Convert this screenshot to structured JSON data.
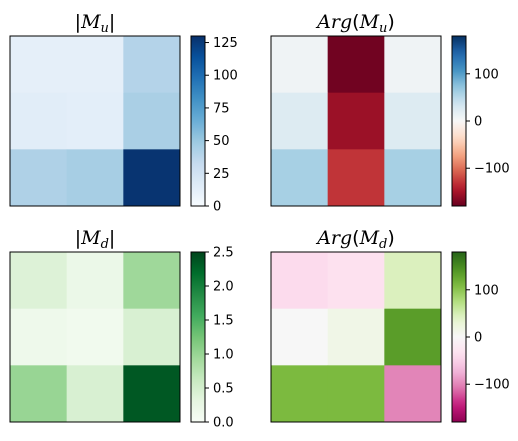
{
  "chart_data": [
    {
      "type": "heatmap",
      "title": "|M_u|",
      "cmap": "Blues",
      "vmin": 0,
      "vmax": 130,
      "matrix": [
        [
          12,
          12,
          40
        ],
        [
          14,
          13,
          44
        ],
        [
          42,
          45,
          128
        ]
      ],
      "colorbar_ticks": [
        "0",
        "25",
        "50",
        "75",
        "100",
        "125"
      ],
      "colorbar_tick_values": [
        0,
        25,
        50,
        75,
        100,
        125
      ]
    },
    {
      "type": "heatmap",
      "title": "Arg(M_u)",
      "cmap": "RdBu",
      "vmin": -180,
      "vmax": 180,
      "matrix": [
        [
          8,
          -175,
          8
        ],
        [
          25,
          -155,
          25
        ],
        [
          60,
          -130,
          60
        ]
      ],
      "colorbar_ticks": [
        "100",
        "0",
        "−100"
      ],
      "colorbar_tick_values": [
        100,
        0,
        -100
      ]
    },
    {
      "type": "heatmap",
      "title": "|M_d|",
      "cmap": "Greens",
      "vmin": 0,
      "vmax": 2.5,
      "matrix": [
        [
          0.4,
          0.2,
          0.95
        ],
        [
          0.15,
          0.1,
          0.45
        ],
        [
          1.0,
          0.45,
          2.35
        ]
      ],
      "colorbar_ticks": [
        "0.0",
        "0.5",
        "1.0",
        "1.5",
        "2.0",
        "2.5"
      ],
      "colorbar_tick_values": [
        0.0,
        0.5,
        1.0,
        1.5,
        2.0,
        2.5
      ]
    },
    {
      "type": "heatmap",
      "title": "Arg(M_d)",
      "cmap": "PiYG",
      "vmin": -180,
      "vmax": 180,
      "matrix": [
        [
          -40,
          -35,
          45
        ],
        [
          0,
          15,
          135
        ],
        [
          110,
          110,
          -100
        ]
      ],
      "colorbar_ticks": [
        "100",
        "0",
        "−100"
      ],
      "colorbar_tick_values": [
        100,
        0,
        -100
      ]
    }
  ]
}
